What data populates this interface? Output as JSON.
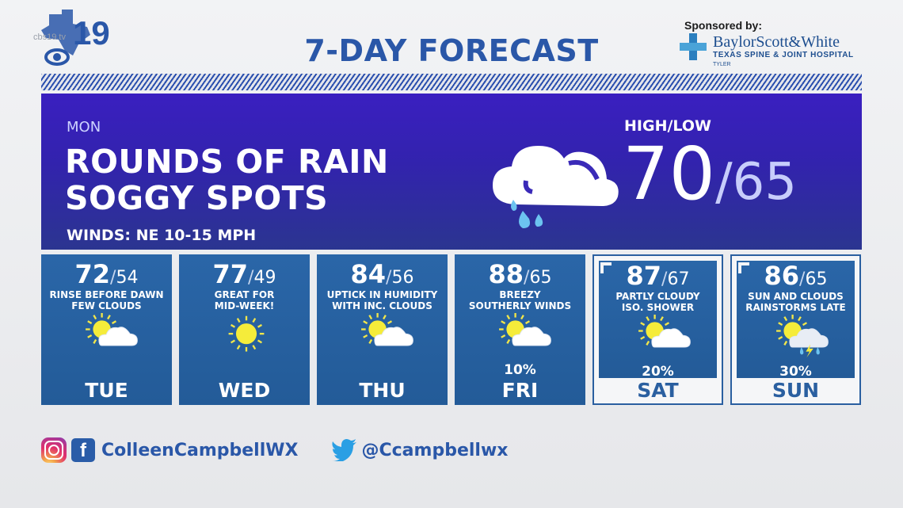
{
  "station": {
    "logo_icon": "cbs-19-texas-logo-icon",
    "watermark": "cbs19.tv",
    "channel": "19"
  },
  "title": "7-DAY FORECAST",
  "sponsor": {
    "label": "Sponsored by:",
    "brand": "BaylorScott&White",
    "subtitle": "TEXAS SPINE & JOINT HOSPITAL",
    "city": "TYLER"
  },
  "today": {
    "day": "MON",
    "headline_line1": "ROUNDS OF RAIN",
    "headline_line2": "SOGGY SPOTS",
    "winds": "WINDS: NE 10-15 MPH",
    "hilo_label": "HIGH/LOW",
    "high": "70",
    "separator": "/",
    "low": "65",
    "icon": "cloud-rain-icon"
  },
  "forecast": [
    {
      "day": "TUE",
      "high": "72",
      "low": "54",
      "desc1": "RINSE BEFORE DAWN",
      "desc2": "FEW CLOUDS",
      "pct": "",
      "icon": "sun-cloud-icon",
      "weekend": false
    },
    {
      "day": "WED",
      "high": "77",
      "low": "49",
      "desc1": "GREAT FOR",
      "desc2": "MID-WEEK!",
      "pct": "",
      "icon": "sun-icon",
      "weekend": false
    },
    {
      "day": "THU",
      "high": "84",
      "low": "56",
      "desc1": "UPTICK IN HUMIDITY",
      "desc2": "WITH INC. CLOUDS",
      "pct": "",
      "icon": "sun-cloud-icon",
      "weekend": false
    },
    {
      "day": "FRI",
      "high": "88",
      "low": "65",
      "desc1": "BREEZY",
      "desc2": "SOUTHERLY WINDS",
      "pct": "10%",
      "icon": "sun-cloud-icon",
      "weekend": false
    },
    {
      "day": "SAT",
      "high": "87",
      "low": "67",
      "desc1": "PARTLY CLOUDY",
      "desc2": "ISO. SHOWER",
      "pct": "20%",
      "icon": "sun-cloud-icon",
      "weekend": true
    },
    {
      "day": "SUN",
      "high": "86",
      "low": "65",
      "desc1": "SUN AND CLOUDS",
      "desc2": "RAINSTORMS LATE",
      "pct": "30%",
      "icon": "sun-storm-cloud-icon",
      "weekend": true
    }
  ],
  "social": {
    "instagram_icon": "instagram-icon",
    "facebook_icon": "facebook-icon",
    "facebook_glyph": "f",
    "facebook_handle": "ColleenCampbellWX",
    "twitter_icon": "twitter-icon",
    "twitter_handle": "@Ccampbellwx"
  }
}
